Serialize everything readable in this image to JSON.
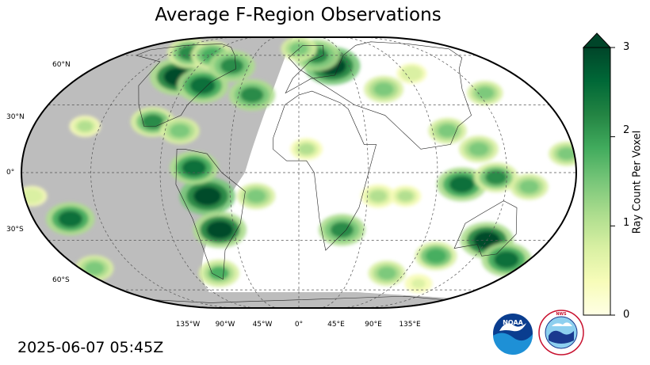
{
  "title": "Average F-Region Observations",
  "timestamp": "2025-06-07 05:45Z",
  "colorbar": {
    "label": "Ray Count Per Voxel",
    "min": 0,
    "max": 3,
    "extend": "max",
    "ticks": [
      "0",
      "1",
      "2",
      "3"
    ],
    "colormap": "YlGn",
    "colors": [
      "#ffffe5",
      "#f7fcb9",
      "#d9f0a3",
      "#addd8e",
      "#78c679",
      "#41ab5d",
      "#238443",
      "#006837",
      "#004529"
    ]
  },
  "map": {
    "projection": "Robinson",
    "graticule": "dashed",
    "night_shade_color": "#bdbdbd",
    "lat_labels": [
      "60°N",
      "30°N",
      "0°",
      "30°S",
      "60°S"
    ],
    "lon_labels": [
      "135°W",
      "90°W",
      "45°W",
      "0°",
      "45°E",
      "90°E",
      "135°E"
    ]
  },
  "logos": {
    "noaa": "NOAA",
    "nws": "NATIONAL WEATHER SERVICE"
  },
  "chart_data": {
    "type": "heatmap",
    "title": "Average F-Region Observations",
    "value_label": "Ray Count Per Voxel",
    "range": [
      0,
      3
    ],
    "units_grid": "lon/lat degrees",
    "regions": [
      {
        "lon": -100,
        "lat": 45,
        "value": 2.9
      },
      {
        "lon": -75,
        "lat": 40,
        "value": 2.6
      },
      {
        "lon": -115,
        "lat": 62,
        "value": 2.0
      },
      {
        "lon": -88,
        "lat": 60,
        "value": 1.8
      },
      {
        "lon": -60,
        "lat": 52,
        "value": 2.2
      },
      {
        "lon": -100,
        "lat": 22,
        "value": 2.0
      },
      {
        "lon": -80,
        "lat": 18,
        "value": 1.6
      },
      {
        "lon": -35,
        "lat": 35,
        "value": 2.2
      },
      {
        "lon": -145,
        "lat": 20,
        "value": 0.9
      },
      {
        "lon": -60,
        "lat": -10,
        "value": 3.0
      },
      {
        "lon": -55,
        "lat": -25,
        "value": 2.8
      },
      {
        "lon": -68,
        "lat": 2,
        "value": 2.4
      },
      {
        "lon": -68,
        "lat": -48,
        "value": 1.7
      },
      {
        "lon": -28,
        "lat": -10,
        "value": 1.5
      },
      {
        "lon": -155,
        "lat": -20,
        "value": 2.4
      },
      {
        "lon": -175,
        "lat": -10,
        "value": 0.8
      },
      {
        "lon": -168,
        "lat": -45,
        "value": 1.5
      },
      {
        "lon": 30,
        "lat": 52,
        "value": 3.0
      },
      {
        "lon": 18,
        "lat": 60,
        "value": 2.2
      },
      {
        "lon": 0,
        "lat": 66,
        "value": 1.3
      },
      {
        "lon": 65,
        "lat": 38,
        "value": 1.6
      },
      {
        "lon": 95,
        "lat": 47,
        "value": 0.8
      },
      {
        "lon": 140,
        "lat": 36,
        "value": 1.3
      },
      {
        "lon": 100,
        "lat": 18,
        "value": 1.5
      },
      {
        "lon": 118,
        "lat": 10,
        "value": 1.6
      },
      {
        "lon": 106,
        "lat": -5,
        "value": 2.5
      },
      {
        "lon": 128,
        "lat": -2,
        "value": 2.0
      },
      {
        "lon": 150,
        "lat": -6,
        "value": 1.5
      },
      {
        "lon": 135,
        "lat": -30,
        "value": 2.8
      },
      {
        "lon": 162,
        "lat": -40,
        "value": 2.5
      },
      {
        "lon": 105,
        "lat": -38,
        "value": 1.8
      },
      {
        "lon": 30,
        "lat": -25,
        "value": 2.2
      },
      {
        "lon": 52,
        "lat": -10,
        "value": 1.2
      },
      {
        "lon": 70,
        "lat": -10,
        "value": 0.9
      },
      {
        "lon": 75,
        "lat": -48,
        "value": 1.4
      },
      {
        "lon": 112,
        "lat": -55,
        "value": 0.6
      },
      {
        "lon": 5,
        "lat": 10,
        "value": 1.0
      },
      {
        "lon": 175,
        "lat": 8,
        "value": 1.3
      }
    ]
  }
}
